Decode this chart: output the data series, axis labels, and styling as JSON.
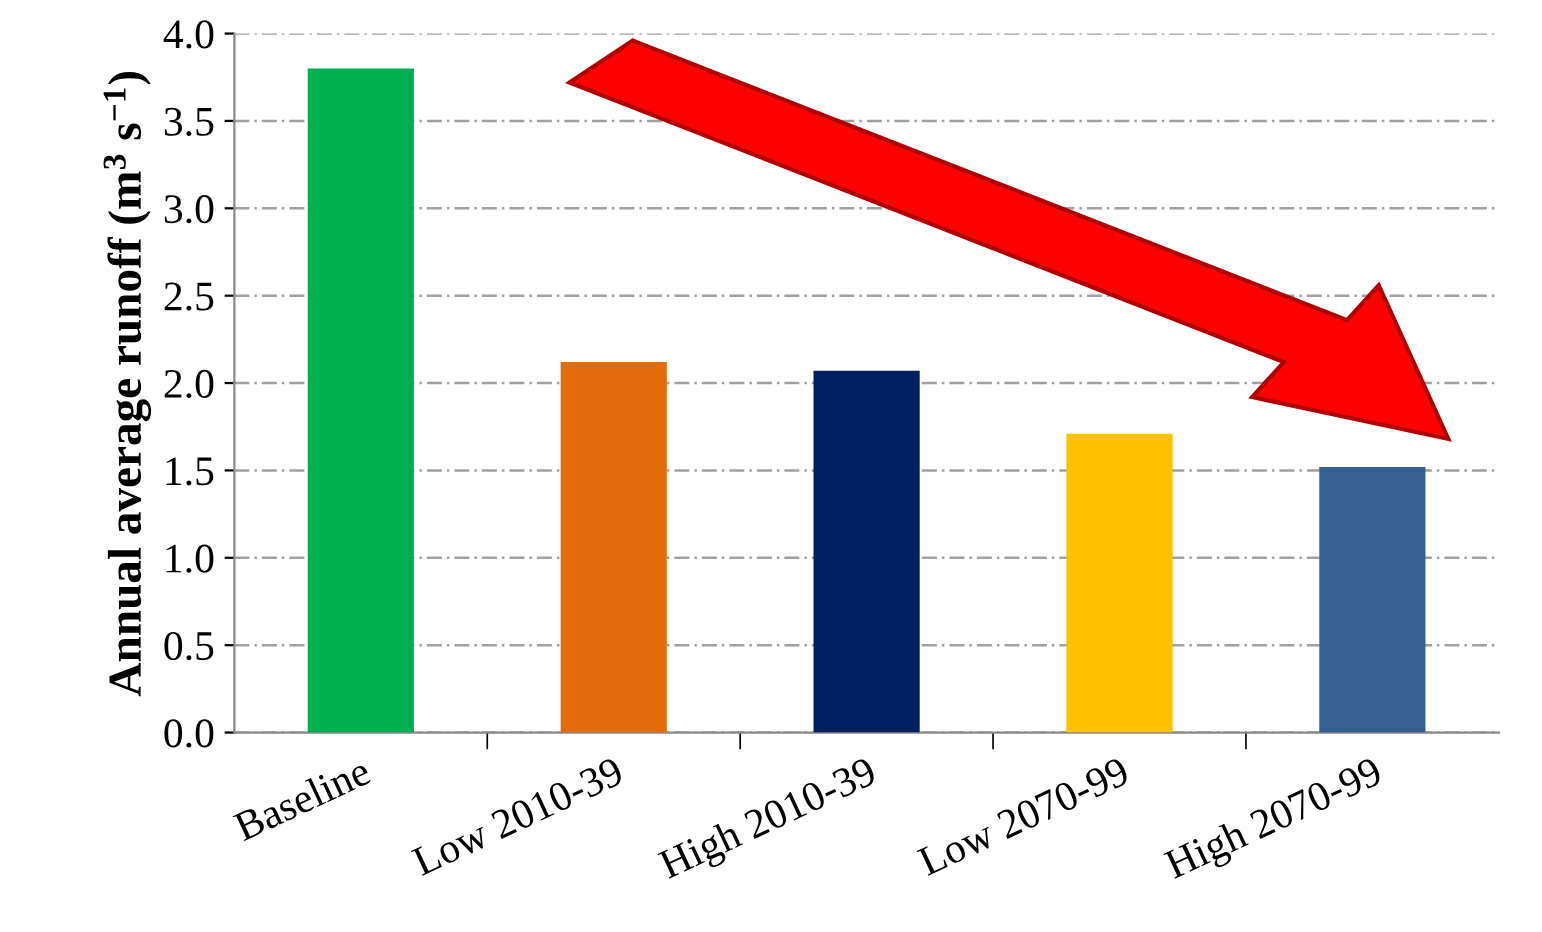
{
  "chart_data": {
    "type": "bar",
    "ylabel": "Annual average runoff (m$^{3}$ s$^{−1}$)",
    "categories": [
      "Baseline",
      "Low 2010-39",
      "High 2010-39",
      "Low 2070-99",
      "High 2070-99"
    ],
    "values": [
      3.8,
      2.12,
      2.07,
      1.71,
      1.52
    ],
    "colors": [
      "#00b050",
      "#e36c09",
      "#002060",
      "#ffc000",
      "#366092"
    ],
    "ylim": [
      0,
      4.0
    ],
    "yticks": [
      {
        "value": 0,
        "label": "0.0"
      },
      0.5,
      {
        "value": 1,
        "label": "1.0"
      },
      1.5,
      {
        "value": 2,
        "label": "2.0"
      },
      2.5,
      {
        "value": 3,
        "label": "3.0"
      },
      3.5,
      {
        "value": 4,
        "label": "4.0"
      }
    ],
    "grid": "y"
  }
}
